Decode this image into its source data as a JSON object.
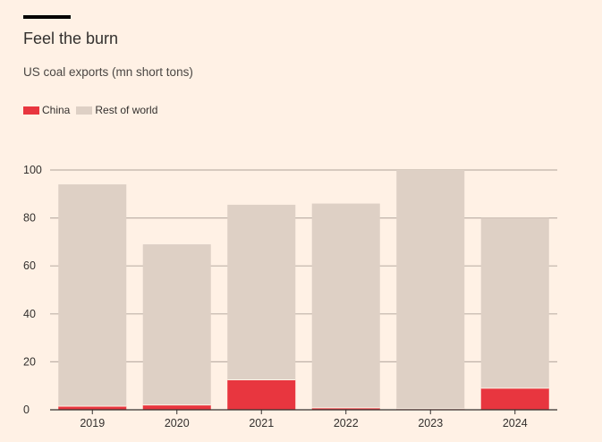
{
  "header": {
    "title": "Feel the burn",
    "subtitle": "US coal exports (mn short tons)"
  },
  "colors": {
    "background": "#fff1e5",
    "china": "#e8363f",
    "rest_of_world": "#ded0c5",
    "grid": "#bfb2a9",
    "axis": "#33302e"
  },
  "chart_data": {
    "type": "bar",
    "stacked": true,
    "categories": [
      "2019",
      "2020",
      "2021",
      "2022",
      "2023",
      "2024"
    ],
    "series": [
      {
        "name": "China",
        "color": "#e8363f",
        "values": [
          1.5,
          2,
          12.5,
          0.8,
          0.4,
          9
        ]
      },
      {
        "name": "Rest of world",
        "color": "#ded0c5",
        "values": [
          92.5,
          67,
          73,
          85.2,
          99.6,
          71
        ]
      }
    ],
    "ylim": [
      0,
      100
    ],
    "yticks": [
      "0",
      "20",
      "40",
      "60",
      "80",
      "100"
    ],
    "grid": true,
    "legend_position": "top-left"
  }
}
